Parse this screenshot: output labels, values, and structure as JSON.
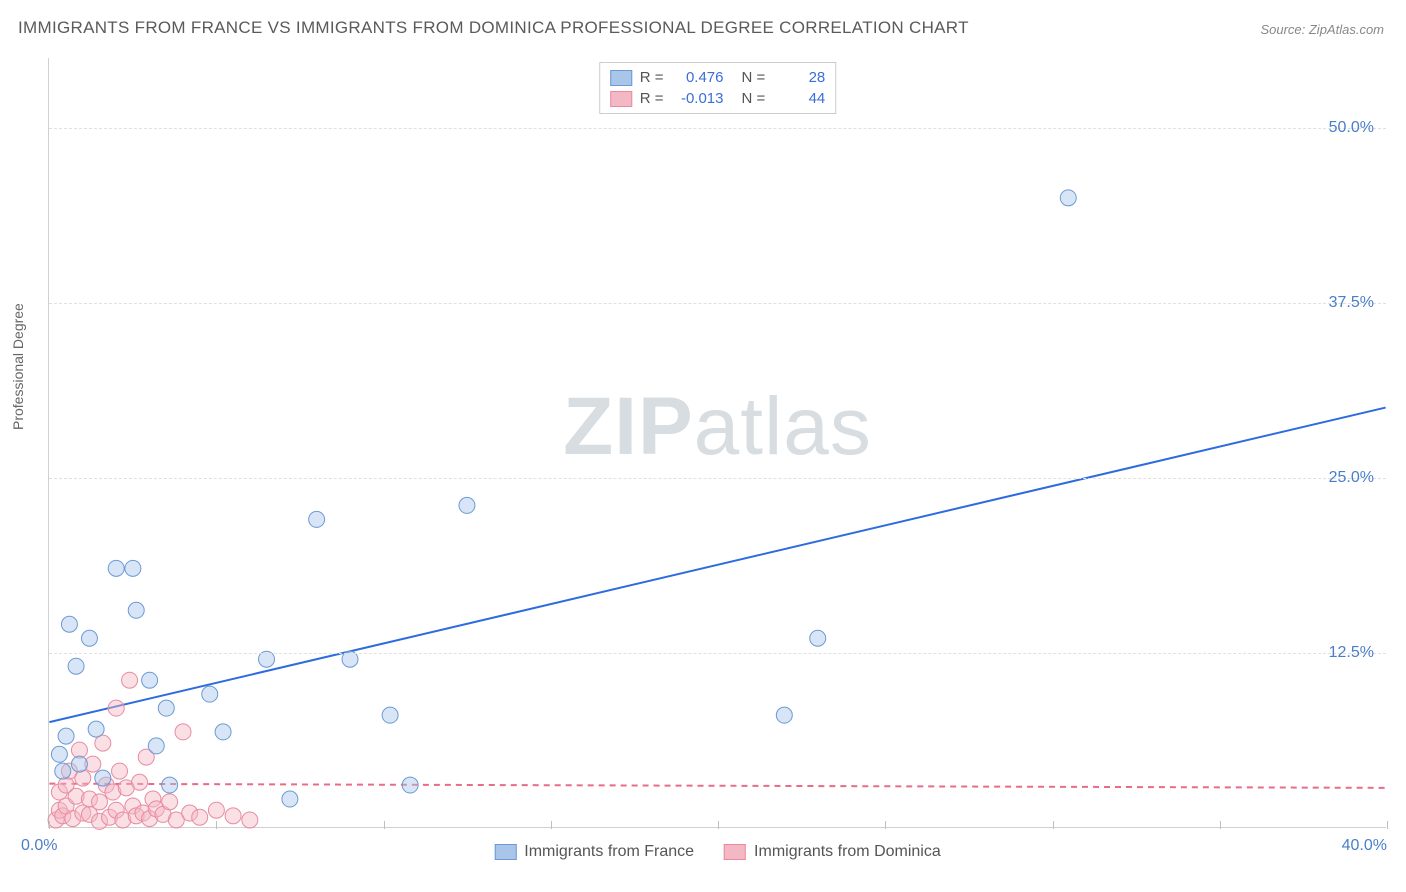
{
  "title": "IMMIGRANTS FROM FRANCE VS IMMIGRANTS FROM DOMINICA PROFESSIONAL DEGREE CORRELATION CHART",
  "source": "Source: ZipAtlas.com",
  "ylabel": "Professional Degree",
  "watermark_bold": "ZIP",
  "watermark_rest": "atlas",
  "chart": {
    "type": "scatter",
    "xlim": [
      0,
      40
    ],
    "ylim": [
      0,
      55
    ],
    "xtick_step": 5,
    "x_visible_labels": {
      "0": "0.0%",
      "40": "40.0%"
    },
    "y_visible_labels": {
      "12.5": "12.5%",
      "25": "25.0%",
      "37.5": "37.5%",
      "50": "50.0%"
    },
    "grid_color": "#e0e0e0",
    "axis_color": "#d0d0d0",
    "background_color": "#ffffff",
    "label_color": "#4a7ec9",
    "marker_radius": 8,
    "marker_opacity": 0.45,
    "line_width": 2
  },
  "series": [
    {
      "name": "Immigrants from France",
      "color_fill": "#a9c5ea",
      "color_stroke": "#6b9ad4",
      "line_color": "#2d6cdf",
      "r": 0.476,
      "n": 28,
      "regression": {
        "x1": 0,
        "y1": 7.5,
        "x2": 40,
        "y2": 30.0,
        "dash": false
      },
      "points": [
        [
          0.3,
          5.2
        ],
        [
          0.4,
          4.0
        ],
        [
          0.5,
          6.5
        ],
        [
          0.6,
          14.5
        ],
        [
          0.8,
          11.5
        ],
        [
          0.9,
          4.5
        ],
        [
          1.2,
          13.5
        ],
        [
          1.4,
          7.0
        ],
        [
          1.6,
          3.5
        ],
        [
          2.0,
          18.5
        ],
        [
          2.5,
          18.5
        ],
        [
          2.6,
          15.5
        ],
        [
          3.0,
          10.5
        ],
        [
          3.2,
          5.8
        ],
        [
          3.5,
          8.5
        ],
        [
          3.6,
          3.0
        ],
        [
          4.8,
          9.5
        ],
        [
          5.2,
          6.8
        ],
        [
          6.5,
          12.0
        ],
        [
          7.2,
          2.0
        ],
        [
          8.0,
          22.0
        ],
        [
          9.0,
          12.0
        ],
        [
          10.2,
          8.0
        ],
        [
          10.8,
          3.0
        ],
        [
          12.5,
          23.0
        ],
        [
          22.0,
          8.0
        ],
        [
          23.0,
          13.5
        ],
        [
          30.5,
          45.0
        ]
      ]
    },
    {
      "name": "Immigrants from Dominica",
      "color_fill": "#f4b7c4",
      "color_stroke": "#e98ba0",
      "line_color": "#e86b88",
      "r": -0.013,
      "n": 44,
      "regression": {
        "x1": 0,
        "y1": 3.1,
        "x2": 40,
        "y2": 2.8,
        "dash": true
      },
      "points": [
        [
          0.2,
          0.5
        ],
        [
          0.3,
          1.2
        ],
        [
          0.3,
          2.5
        ],
        [
          0.4,
          0.8
        ],
        [
          0.5,
          3.0
        ],
        [
          0.5,
          1.5
        ],
        [
          0.6,
          4.0
        ],
        [
          0.7,
          0.6
        ],
        [
          0.8,
          2.2
        ],
        [
          0.9,
          5.5
        ],
        [
          1.0,
          1.0
        ],
        [
          1.0,
          3.5
        ],
        [
          1.2,
          0.9
        ],
        [
          1.2,
          2.0
        ],
        [
          1.3,
          4.5
        ],
        [
          1.5,
          1.8
        ],
        [
          1.5,
          0.4
        ],
        [
          1.6,
          6.0
        ],
        [
          1.7,
          3.0
        ],
        [
          1.8,
          0.7
        ],
        [
          1.9,
          2.5
        ],
        [
          2.0,
          8.5
        ],
        [
          2.0,
          1.2
        ],
        [
          2.1,
          4.0
        ],
        [
          2.2,
          0.5
        ],
        [
          2.3,
          2.8
        ],
        [
          2.4,
          10.5
        ],
        [
          2.5,
          1.5
        ],
        [
          2.6,
          0.8
        ],
        [
          2.7,
          3.2
        ],
        [
          2.8,
          1.0
        ],
        [
          2.9,
          5.0
        ],
        [
          3.0,
          0.6
        ],
        [
          3.1,
          2.0
        ],
        [
          3.2,
          1.3
        ],
        [
          3.4,
          0.9
        ],
        [
          3.6,
          1.8
        ],
        [
          3.8,
          0.5
        ],
        [
          4.0,
          6.8
        ],
        [
          4.2,
          1.0
        ],
        [
          4.5,
          0.7
        ],
        [
          5.0,
          1.2
        ],
        [
          5.5,
          0.8
        ],
        [
          6.0,
          0.5
        ]
      ]
    }
  ],
  "legend_top": {
    "r_label": "R =",
    "n_label": "N ="
  },
  "legend_bottom": [
    {
      "swatch_fill": "#a9c5ea",
      "swatch_stroke": "#6b9ad4",
      "label": "Immigrants from France"
    },
    {
      "swatch_fill": "#f4b7c4",
      "swatch_stroke": "#e98ba0",
      "label": "Immigrants from Dominica"
    }
  ]
}
